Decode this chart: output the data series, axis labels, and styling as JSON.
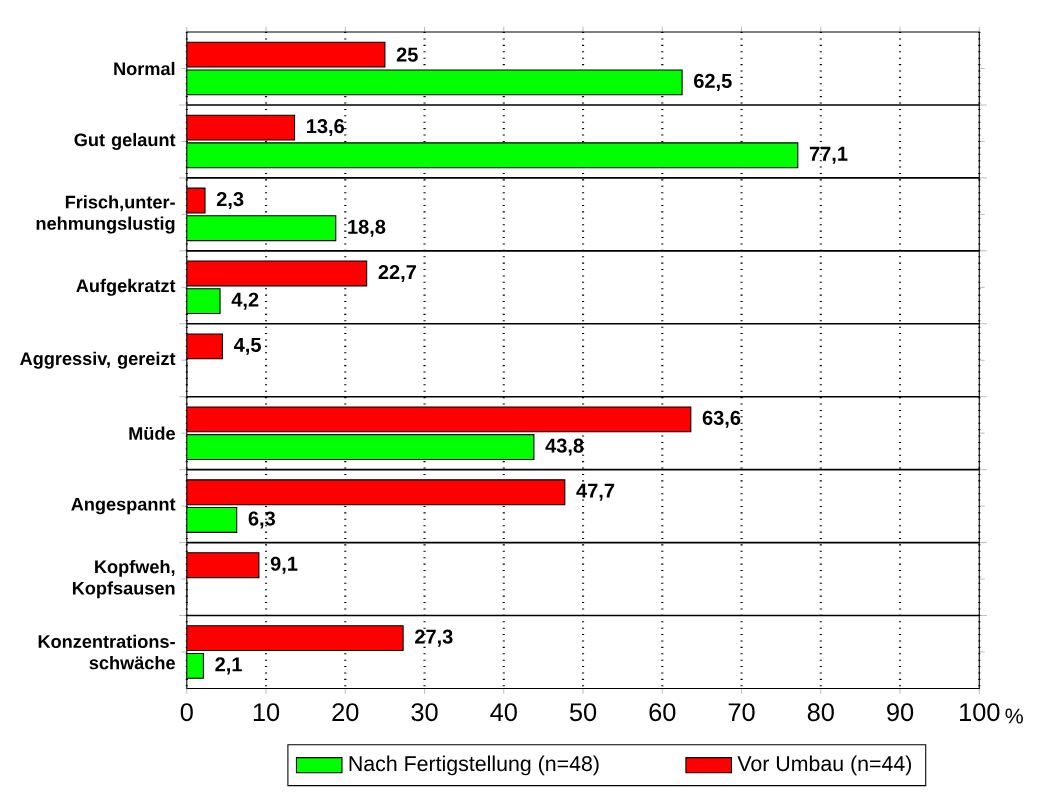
{
  "chart_data": {
    "type": "bar",
    "orientation": "horizontal",
    "xlabel": "%",
    "categories": [
      "Normal",
      "Gut gelaunt",
      "Frisch,unter-nehmungslustig",
      "Aufgekratzt",
      "Aggressiv, gereizt",
      "Müde",
      "Angespannt",
      "Kopfweh, Kopfsausen",
      "Konzentrations-schwäche"
    ],
    "series": [
      {
        "name": "Nach Fertigstellung (n=48)",
        "color": "#00ff00",
        "values": [
          62.5,
          77.1,
          18.8,
          4.2,
          0,
          43.8,
          6.3,
          0,
          2.1
        ],
        "value_labels": [
          "62,5",
          "77,1",
          "18,8",
          "4,2",
          null,
          "43,8",
          "6,3",
          null,
          "2,1"
        ]
      },
      {
        "name": "Vor Umbau (n=44)",
        "color": "#ff0000",
        "values": [
          25,
          13.6,
          2.3,
          22.7,
          4.5,
          63.6,
          47.7,
          9.1,
          27.3
        ],
        "value_labels": [
          "25",
          "13,6",
          "2,3",
          "22,7",
          "4,5",
          "63,6",
          "47,7",
          "9,1",
          "27,3"
        ]
      }
    ],
    "xlim": [
      0,
      100
    ],
    "xticks": [
      0,
      10,
      20,
      30,
      40,
      50,
      60,
      70,
      80,
      90,
      100
    ],
    "grid": "x",
    "legend": "bottom"
  }
}
